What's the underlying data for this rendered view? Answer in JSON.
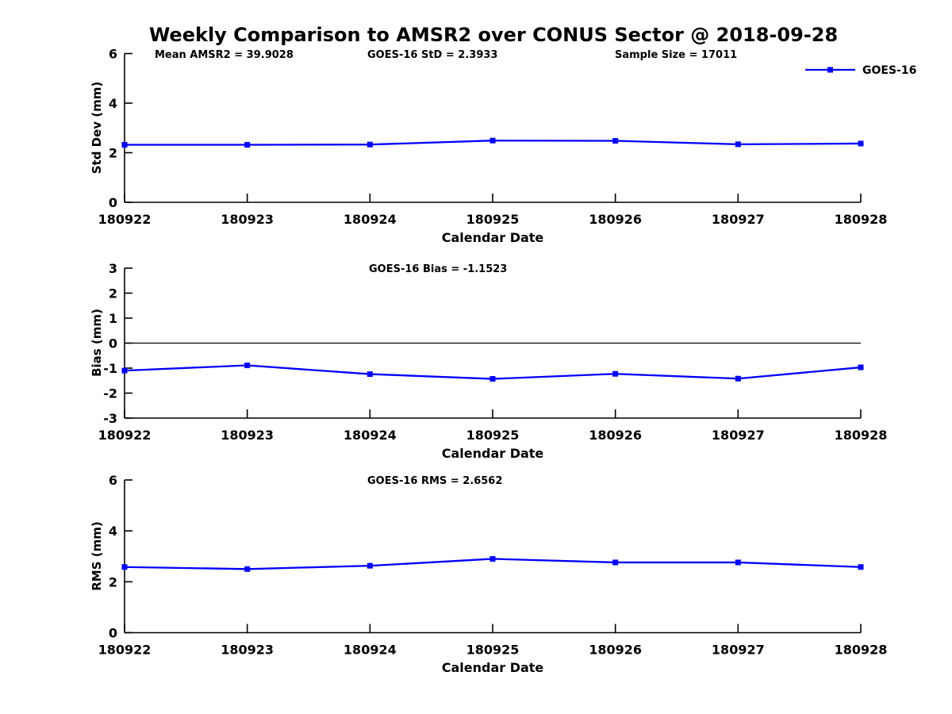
{
  "title": "Weekly Comparison to AMSR2 over CONUS Sector @ 2018-09-28",
  "legend": {
    "label": "GOES-16"
  },
  "colors": {
    "series": "#0000ff",
    "axis": "#000000",
    "text": "#000000",
    "background": "#ffffff"
  },
  "chart_data": [
    {
      "type": "line",
      "panel": "std-dev",
      "categories": [
        "180922",
        "180923",
        "180924",
        "180925",
        "180926",
        "180927",
        "180928"
      ],
      "series": [
        {
          "name": "GOES-16",
          "values": [
            2.32,
            2.32,
            2.33,
            2.49,
            2.48,
            2.34,
            2.37
          ]
        }
      ],
      "xlabel": "Calendar Date",
      "ylabel": "Std Dev (mm)",
      "ylim": [
        0,
        6
      ],
      "yticks": [
        0,
        2,
        4,
        6
      ],
      "zero_line": false,
      "grid": false,
      "legend_position": "top-right-outside",
      "annotations": [
        "Mean AMSR2 = 39.9028",
        "GOES-16 StD = 2.3933",
        "Sample Size = 17011"
      ]
    },
    {
      "type": "line",
      "panel": "bias",
      "categories": [
        "180922",
        "180923",
        "180924",
        "180925",
        "180926",
        "180927",
        "180928"
      ],
      "series": [
        {
          "name": "GOES-16",
          "values": [
            -1.1,
            -0.89,
            -1.24,
            -1.43,
            -1.23,
            -1.42,
            -0.97
          ]
        }
      ],
      "xlabel": "Calendar Date",
      "ylabel": "Bias (mm)",
      "ylim": [
        -3,
        3
      ],
      "yticks": [
        3,
        2,
        1,
        0,
        -1,
        -2,
        -3
      ],
      "zero_line": true,
      "grid": false,
      "annotations": [
        "GOES-16 Bias  = -1.1523"
      ]
    },
    {
      "type": "line",
      "panel": "rms",
      "categories": [
        "180922",
        "180923",
        "180924",
        "180925",
        "180926",
        "180927",
        "180928"
      ],
      "series": [
        {
          "name": "GOES-16",
          "values": [
            2.58,
            2.5,
            2.63,
            2.9,
            2.76,
            2.76,
            2.58
          ]
        }
      ],
      "xlabel": "Calendar Date",
      "ylabel": "RMS (mm)",
      "ylim": [
        0,
        6
      ],
      "yticks": [
        0,
        2,
        4,
        6
      ],
      "zero_line": false,
      "grid": false,
      "annotations": [
        "GOES-16 RMS = 2.6562"
      ]
    }
  ]
}
